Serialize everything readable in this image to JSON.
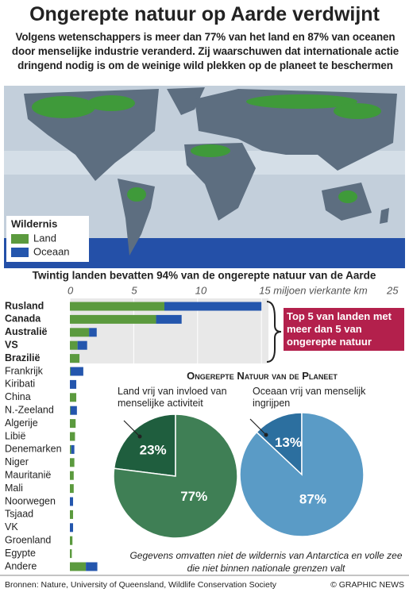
{
  "title": "Ongerepte natuur op Aarde verdwijnt",
  "subtitle": "Volgens wetenschappers is meer dan 77% van het land en 87% van oceanen door menselijke industrie veranderd. Zij waarschuwen dat internationale actie dringend nodig is om de weinige wild plekken op de planeet te beschermen",
  "section_title": "Ongerepte Natuur van de Planeet",
  "note": "Gegevens omvatten niet de wildernis van Antarctica en volle zee die niet binnen nationale grenzen valt",
  "sources": "Bronnen: Nature, University of Queensland, Wildlife Conservation Society",
  "credit": "© GRAPHIC NEWS",
  "chart_data": [
    {
      "type": "bar",
      "orientation": "horizontal",
      "stacked": true,
      "title": "Twintig landen bevatten 94% van de ongerepte natuur van de Aarde",
      "legend_title": "Wildernis",
      "annotation": "Top 5 van landen met meer dan 5 van ongerepte natuur",
      "categories": [
        "Rusland",
        "Canada",
        "Australië",
        "VS",
        "Brazilië",
        "Frankrijk",
        "Kiribati",
        "China",
        "N.-Zeeland",
        "Algerije",
        "Libië",
        "Denemarken",
        "Niger",
        "Mauritanië",
        "Mali",
        "Noorwegen",
        "Tsjaad",
        "VK",
        "Groenland",
        "Egypte",
        "Andere"
      ],
      "series": [
        {
          "name": "Land",
          "color": "#5b9a3e",
          "values": [
            7.4,
            6.75,
            1.5,
            0.6,
            0.75,
            0.05,
            0,
            0.5,
            0.05,
            0.45,
            0.4,
            0.1,
            0.35,
            0.3,
            0.3,
            0,
            0.25,
            0,
            0.2,
            0.15,
            1.25
          ]
        },
        {
          "name": "Oceaan",
          "color": "#2456ad",
          "values": [
            7.6,
            2.0,
            0.6,
            0.75,
            0,
            1.0,
            0.5,
            0,
            0.5,
            0,
            0,
            0.25,
            0,
            0,
            0,
            0.25,
            0,
            0.25,
            0,
            0,
            0.9
          ]
        }
      ],
      "xlim": [
        0,
        25
      ],
      "xticks": [
        0,
        5,
        10,
        {
          "value": 15,
          "label": "15 miljoen vierkante km"
        },
        25
      ],
      "grid": true
    },
    {
      "type": "pie",
      "title": "Land vrij van invloed van menselijke activiteit",
      "values": [
        23,
        77
      ],
      "value_labels": [
        "23%",
        "77%"
      ],
      "colors": [
        "#1f5e3e",
        "#3f7f55"
      ]
    },
    {
      "type": "pie",
      "title": "Oceaan vrij van menselijk ingrijpen",
      "values": [
        13,
        87
      ],
      "value_labels": [
        "13%",
        "87%"
      ],
      "colors": [
        "#2c6f9f",
        "#5a9bc6"
      ]
    }
  ]
}
